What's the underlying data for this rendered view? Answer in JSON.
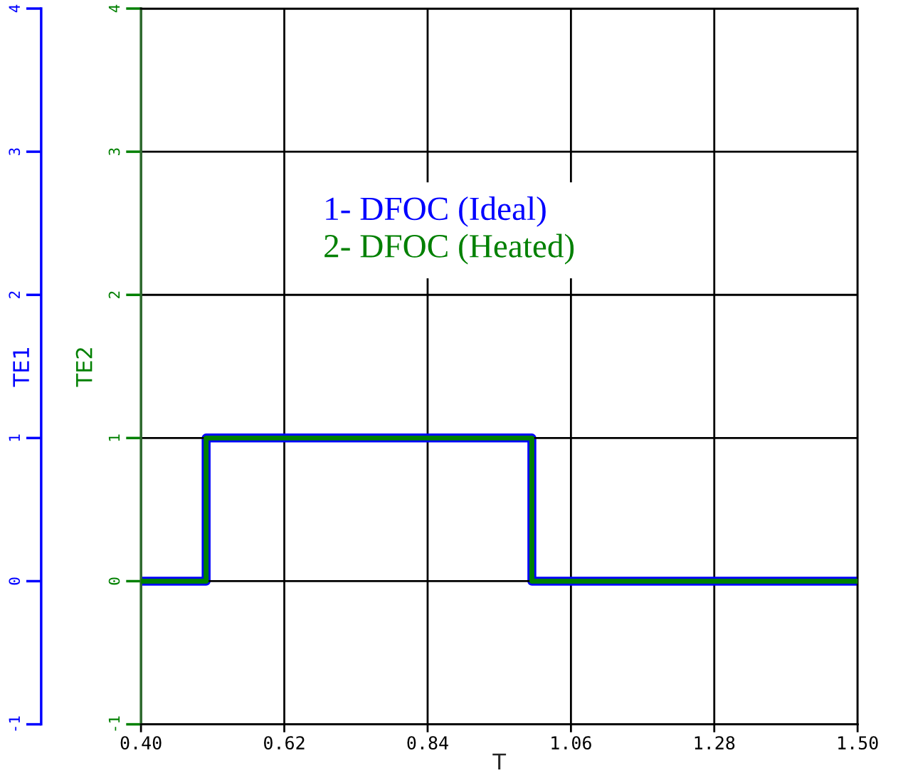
{
  "chart_data": {
    "type": "step",
    "xlabel": "T",
    "ylabel": "TE1",
    "y2label": "TE2",
    "x": [
      0.4,
      0.5,
      1.0,
      1.5
    ],
    "series": [
      {
        "name": "1- DFOC (Ideal)",
        "color": "#0000ff",
        "values": [
          0,
          1,
          0,
          0
        ],
        "axis": "y"
      },
      {
        "name": "2- DFOC (Heated)",
        "color": "#008000",
        "values": [
          0,
          1,
          0,
          0
        ],
        "axis": "y2"
      }
    ],
    "xlim": [
      0.4,
      1.5
    ],
    "xticks": [
      {
        "value": 0.4,
        "label": "0.40"
      },
      {
        "value": 0.62,
        "label": "0.62"
      },
      {
        "value": 0.84,
        "label": "0.84"
      },
      {
        "value": 1.06,
        "label": "1.06"
      },
      {
        "value": 1.28,
        "label": "1.28"
      },
      {
        "value": 1.5,
        "label": "1.50"
      }
    ],
    "ylim": [
      -1,
      4
    ],
    "yticks": [
      -1,
      0,
      1,
      2,
      3,
      4
    ],
    "y2lim": [
      -1,
      4
    ],
    "y2ticks": [
      -1,
      0,
      1,
      2,
      3,
      4
    ],
    "grid": true,
    "legend": "top"
  }
}
